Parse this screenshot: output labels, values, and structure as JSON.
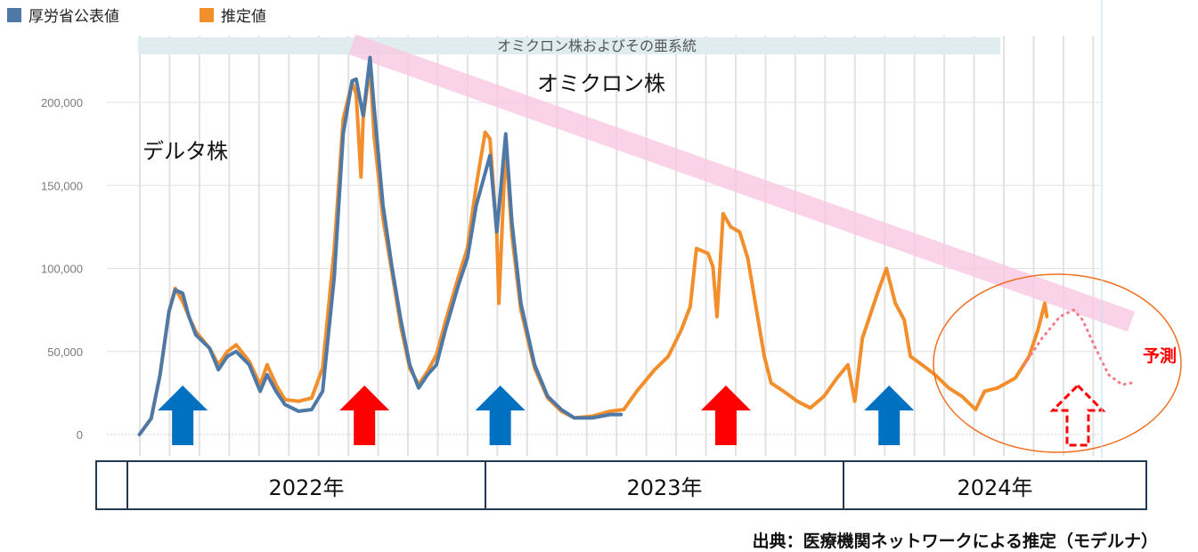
{
  "chart_data": {
    "type": "line",
    "title": "",
    "xlabel": "",
    "ylabel": "",
    "x_unit": "weeks since start of 2022",
    "ylim": [
      0,
      230000
    ],
    "yticks": [
      0,
      50000,
      100000,
      150000,
      200000
    ],
    "ytick_labels": [
      "0",
      "50,000",
      "100,000",
      "150,000",
      "200,000"
    ],
    "grid": true,
    "legend_position": "top-left",
    "legend": [
      {
        "name": "厚労省公表値",
        "color": "#4e79a7"
      },
      {
        "name": "推定値",
        "color": "#f28e2b"
      }
    ],
    "series": [
      {
        "name": "推定値",
        "color": "#f28e2b",
        "points": [
          [
            1.9,
            0
          ],
          [
            3.6,
            9600
          ],
          [
            4.9,
            36000
          ],
          [
            6.2,
            74000
          ],
          [
            7.1,
            88000
          ],
          [
            8.2,
            80000
          ],
          [
            9.1,
            71000
          ],
          [
            10.1,
            62000
          ],
          [
            12.1,
            52000
          ],
          [
            13.4,
            42000
          ],
          [
            14.7,
            50000
          ],
          [
            16.0,
            54000
          ],
          [
            17.9,
            44000
          ],
          [
            19.5,
            30000
          ],
          [
            20.5,
            42000
          ],
          [
            21.8,
            30000
          ],
          [
            23.1,
            21000
          ],
          [
            25.1,
            20000
          ],
          [
            27.0,
            22000
          ],
          [
            28.6,
            40000
          ],
          [
            30.3,
            112000
          ],
          [
            31.6,
            190000
          ],
          [
            32.9,
            212000
          ],
          [
            33.5,
            205000
          ],
          [
            34.2,
            155000
          ],
          [
            34.5,
            190000
          ],
          [
            35.5,
            222000
          ],
          [
            36.1,
            180000
          ],
          [
            37.4,
            130000
          ],
          [
            38.7,
            98000
          ],
          [
            40.0,
            65000
          ],
          [
            41.3,
            40000
          ],
          [
            42.6,
            30000
          ],
          [
            43.9,
            38000
          ],
          [
            45.2,
            48000
          ],
          [
            46.5,
            68000
          ],
          [
            48.4,
            95000
          ],
          [
            49.7,
            112000
          ],
          [
            51.0,
            150000
          ],
          [
            52.3,
            182000
          ],
          [
            53.0,
            178000
          ],
          [
            54.0,
            120000
          ],
          [
            54.3,
            79000
          ],
          [
            55.3,
            175000
          ],
          [
            56.2,
            120000
          ],
          [
            57.5,
            75000
          ],
          [
            59.5,
            40000
          ],
          [
            61.4,
            22000
          ],
          [
            63.4,
            14000
          ],
          [
            65.3,
            10000
          ],
          [
            67.9,
            11000
          ],
          [
            70.5,
            14000
          ],
          [
            72.5,
            15000
          ],
          [
            74.4,
            26000
          ],
          [
            77.0,
            39000
          ],
          [
            79.0,
            47000
          ],
          [
            80.9,
            63000
          ],
          [
            82.2,
            77000
          ],
          [
            83.1,
            112000
          ],
          [
            84.8,
            109000
          ],
          [
            85.5,
            101000
          ],
          [
            86.1,
            71000
          ],
          [
            87.0,
            133000
          ],
          [
            88.1,
            125000
          ],
          [
            89.4,
            122000
          ],
          [
            90.6,
            106000
          ],
          [
            91.9,
            74000
          ],
          [
            93.0,
            47000
          ],
          [
            94.0,
            31000
          ],
          [
            95.8,
            26000
          ],
          [
            97.8,
            20000
          ],
          [
            99.7,
            16000
          ],
          [
            101.7,
            23000
          ],
          [
            103.6,
            34000
          ],
          [
            105.2,
            42000
          ],
          [
            106.2,
            20000
          ],
          [
            107.3,
            58000
          ],
          [
            108.2,
            69000
          ],
          [
            109.5,
            85000
          ],
          [
            110.8,
            100000
          ],
          [
            112.1,
            79000
          ],
          [
            113.4,
            69000
          ],
          [
            114.3,
            47000
          ],
          [
            116.0,
            42000
          ],
          [
            117.9,
            36000
          ],
          [
            119.9,
            28000
          ],
          [
            121.8,
            23000
          ],
          [
            123.8,
            15000
          ],
          [
            125.1,
            26000
          ],
          [
            127.0,
            28000
          ],
          [
            129.6,
            34000
          ],
          [
            131.6,
            47000
          ],
          [
            132.9,
            63000
          ],
          [
            133.9,
            79000
          ],
          [
            134.2,
            71000
          ]
        ]
      },
      {
        "name": "厚労省公表値",
        "color": "#4e79a7",
        "points": [
          [
            1.9,
            0
          ],
          [
            3.6,
            9600
          ],
          [
            4.9,
            36000
          ],
          [
            6.2,
            74000
          ],
          [
            7.1,
            87000
          ],
          [
            8.2,
            85000
          ],
          [
            9.1,
            71000
          ],
          [
            10.1,
            60000
          ],
          [
            12.1,
            52000
          ],
          [
            13.4,
            39000
          ],
          [
            14.7,
            47000
          ],
          [
            16.0,
            50000
          ],
          [
            17.9,
            42000
          ],
          [
            19.5,
            26000
          ],
          [
            20.5,
            36000
          ],
          [
            21.8,
            26000
          ],
          [
            23.1,
            18000
          ],
          [
            25.1,
            14000
          ],
          [
            27.0,
            15000
          ],
          [
            28.6,
            26000
          ],
          [
            30.3,
            95000
          ],
          [
            31.6,
            181000
          ],
          [
            32.9,
            213000
          ],
          [
            33.5,
            214000
          ],
          [
            34.5,
            192000
          ],
          [
            35.5,
            227000
          ],
          [
            36.1,
            197000
          ],
          [
            37.4,
            138000
          ],
          [
            38.7,
            101000
          ],
          [
            40.0,
            69000
          ],
          [
            41.3,
            42000
          ],
          [
            42.6,
            28000
          ],
          [
            43.9,
            36000
          ],
          [
            45.2,
            42000
          ],
          [
            46.5,
            63000
          ],
          [
            48.4,
            90000
          ],
          [
            49.7,
            106000
          ],
          [
            51.0,
            138000
          ],
          [
            53.0,
            168000
          ],
          [
            54.0,
            122000
          ],
          [
            55.3,
            181000
          ],
          [
            56.2,
            128000
          ],
          [
            57.5,
            79000
          ],
          [
            59.5,
            42000
          ],
          [
            61.4,
            23000
          ],
          [
            63.4,
            15000
          ],
          [
            65.3,
            10000
          ],
          [
            67.9,
            10000
          ],
          [
            70.5,
            12000
          ],
          [
            72.1,
            12000
          ]
        ]
      },
      {
        "name": "予測",
        "color": "#f47c8a",
        "style": "dotted",
        "points": [
          [
            130.9,
            42000
          ],
          [
            133.5,
            58000
          ],
          [
            136.1,
            71000
          ],
          [
            138.1,
            75000
          ],
          [
            139.4,
            69000
          ],
          [
            141.3,
            52000
          ],
          [
            143.2,
            36000
          ],
          [
            145.2,
            30000
          ],
          [
            146.5,
            31000
          ]
        ]
      }
    ],
    "annotations": {
      "variant_banner": "オミクロン株およびその亜系統",
      "delta_label": "デルタ株",
      "omicron_label": "オミクロン株",
      "forecast_label": "予測",
      "trend_band": {
        "start": [
          32.9,
          235000
        ],
        "end": [
          146.5,
          68000
        ],
        "color": "#f9c9e3"
      },
      "arrows": [
        {
          "week": 8.2,
          "color": "#0070c0",
          "style": "solid"
        },
        {
          "week": 34.7,
          "color": "#ff0000",
          "style": "solid"
        },
        {
          "week": 54.5,
          "color": "#0070c0",
          "style": "solid"
        },
        {
          "week": 87.4,
          "color": "#ff0000",
          "style": "solid"
        },
        {
          "week": 111.2,
          "color": "#0070c0",
          "style": "solid"
        },
        {
          "week": 138.7,
          "color": "#ff0000",
          "style": "dashed"
        }
      ]
    },
    "years": [
      "2022年",
      "2023年",
      "2024年"
    ]
  },
  "source": "出典：医療機関ネットワークによる推定（モデルナ）"
}
